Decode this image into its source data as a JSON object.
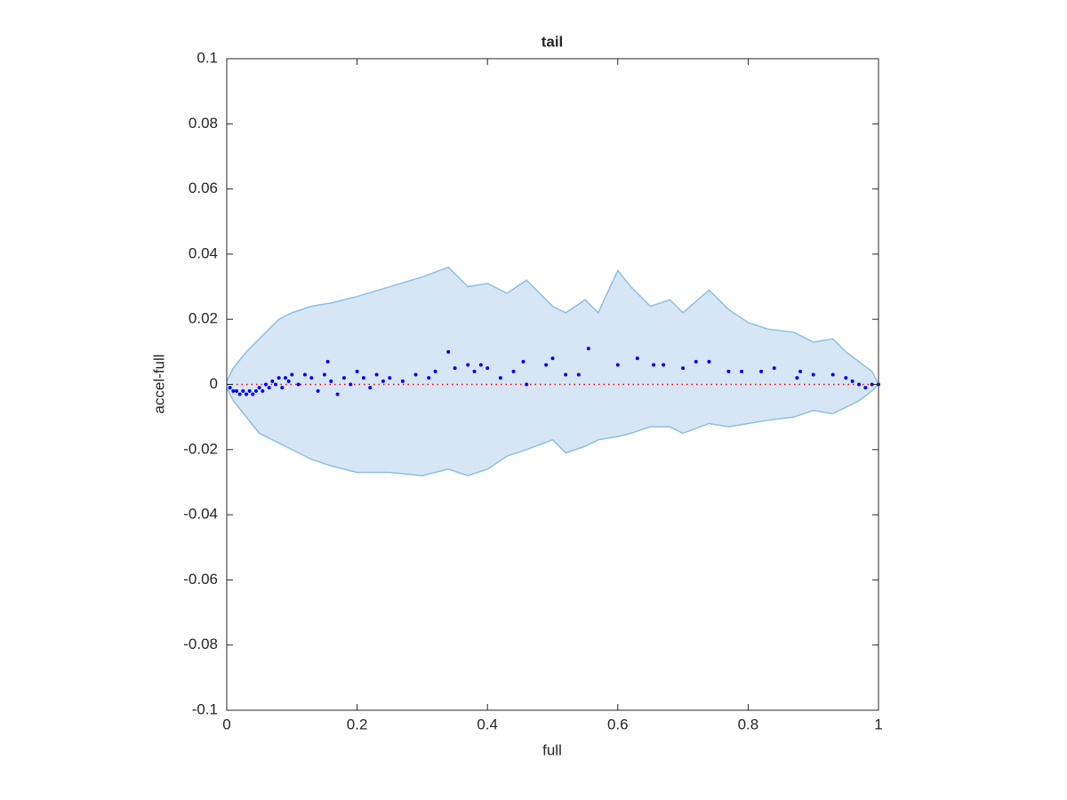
{
  "chart_data": {
    "type": "scatter",
    "title": "tail",
    "x_label": "full",
    "y_label": "accel-full",
    "xlim": [
      0,
      1
    ],
    "ylim": [
      -0.1,
      0.1
    ],
    "xticks": [
      0,
      0.2,
      0.4,
      0.6,
      0.8,
      1
    ],
    "yticks": [
      -0.1,
      -0.08,
      -0.06,
      -0.04,
      -0.02,
      0,
      0.02,
      0.04,
      0.06,
      0.08,
      0.1
    ],
    "band": {
      "fill": "#d6e6f4",
      "color": "#8ec0e0",
      "x": [
        0,
        0.01,
        0.03,
        0.05,
        0.08,
        0.1,
        0.13,
        0.16,
        0.2,
        0.25,
        0.3,
        0.34,
        0.37,
        0.4,
        0.43,
        0.46,
        0.5,
        0.52,
        0.55,
        0.57,
        0.6,
        0.62,
        0.65,
        0.68,
        0.7,
        0.74,
        0.77,
        0.8,
        0.83,
        0.87,
        0.9,
        0.93,
        0.95,
        0.97,
        0.99,
        1
      ],
      "upper": [
        0.001,
        0.005,
        0.01,
        0.014,
        0.02,
        0.022,
        0.024,
        0.025,
        0.027,
        0.03,
        0.033,
        0.036,
        0.03,
        0.031,
        0.028,
        0.032,
        0.024,
        0.022,
        0.026,
        0.022,
        0.035,
        0.03,
        0.024,
        0.026,
        0.022,
        0.029,
        0.023,
        0.019,
        0.017,
        0.016,
        0.013,
        0.014,
        0.01,
        0.007,
        0.004,
        0
      ],
      "lower": [
        -0.001,
        -0.005,
        -0.01,
        -0.015,
        -0.018,
        -0.02,
        -0.023,
        -0.025,
        -0.027,
        -0.027,
        -0.028,
        -0.026,
        -0.028,
        -0.026,
        -0.022,
        -0.02,
        -0.017,
        -0.021,
        -0.019,
        -0.017,
        -0.016,
        -0.015,
        -0.013,
        -0.013,
        -0.015,
        -0.012,
        -0.013,
        -0.012,
        -0.011,
        -0.01,
        -0.008,
        -0.009,
        -0.007,
        -0.005,
        -0.002,
        0
      ]
    },
    "points": {
      "color": "#0000ff",
      "x": [
        0.005,
        0.01,
        0.015,
        0.02,
        0.025,
        0.03,
        0.035,
        0.04,
        0.045,
        0.05,
        0.055,
        0.06,
        0.065,
        0.07,
        0.075,
        0.08,
        0.085,
        0.09,
        0.095,
        0.1,
        0.11,
        0.12,
        0.13,
        0.14,
        0.15,
        0.155,
        0.16,
        0.17,
        0.18,
        0.19,
        0.2,
        0.21,
        0.22,
        0.23,
        0.24,
        0.25,
        0.27,
        0.29,
        0.31,
        0.32,
        0.34,
        0.35,
        0.37,
        0.38,
        0.39,
        0.4,
        0.42,
        0.44,
        0.455,
        0.46,
        0.49,
        0.5,
        0.52,
        0.54,
        0.555,
        0.6,
        0.63,
        0.655,
        0.67,
        0.7,
        0.72,
        0.74,
        0.77,
        0.79,
        0.82,
        0.84,
        0.875,
        0.88,
        0.9,
        0.93,
        0.95,
        0.96,
        0.97,
        0.98,
        0.99,
        1
      ],
      "y": [
        -0.001,
        -0.002,
        -0.002,
        -0.003,
        -0.002,
        -0.003,
        -0.002,
        -0.003,
        -0.002,
        -0.001,
        -0.002,
        0,
        -0.001,
        0.001,
        0,
        0.002,
        -0.001,
        0.002,
        0.001,
        0.003,
        0,
        0.003,
        0.002,
        -0.002,
        0.003,
        0.007,
        0.001,
        -0.003,
        0.002,
        0,
        0.004,
        0.002,
        -0.001,
        0.003,
        0.001,
        0.002,
        0.001,
        0.003,
        0.002,
        0.004,
        0.01,
        0.005,
        0.006,
        0.004,
        0.006,
        0.005,
        0.002,
        0.004,
        0.007,
        0,
        0.006,
        0.008,
        0.003,
        0.003,
        0.011,
        0.006,
        0.008,
        0.006,
        0.006,
        0.005,
        0.007,
        0.007,
        0.004,
        0.004,
        0.004,
        0.005,
        0.002,
        0.004,
        0.003,
        0.003,
        0.002,
        0.001,
        0,
        -0.001,
        0,
        0
      ]
    },
    "reference_line": {
      "value": 0,
      "color": "#ff0000",
      "style": "dotted"
    }
  }
}
